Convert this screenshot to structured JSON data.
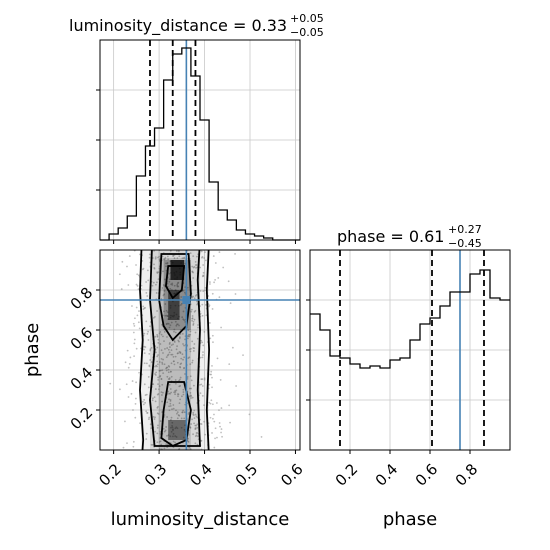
{
  "chart_data": {
    "type": "corner",
    "parameters": [
      "luminosity_distance",
      "phase"
    ],
    "truths": {
      "luminosity_distance": 0.36,
      "phase": 0.75
    },
    "panels": [
      {
        "id": "hist-luminosity_distance",
        "type": "histogram-step",
        "parameter": "luminosity_distance",
        "title": {
          "main": "luminosity_distance = 0.33",
          "sup": "+0.05",
          "sub": "−0.05"
        },
        "xlim": [
          0.17,
          0.61
        ],
        "ylim": [
          0,
          1.0
        ],
        "bin_edges": [
          0.17,
          0.19,
          0.21,
          0.23,
          0.25,
          0.27,
          0.29,
          0.31,
          0.33,
          0.35,
          0.37,
          0.39,
          0.41,
          0.43,
          0.45,
          0.47,
          0.49,
          0.51,
          0.53,
          0.55,
          0.57,
          0.59,
          0.61
        ],
        "values": [
          0.0,
          0.03,
          0.06,
          0.12,
          0.32,
          0.47,
          0.56,
          0.8,
          0.93,
          0.96,
          0.82,
          0.6,
          0.29,
          0.15,
          0.1,
          0.05,
          0.03,
          0.02,
          0.01,
          0.0,
          0.0,
          0.0
        ],
        "quantiles": [
          0.28,
          0.33,
          0.38
        ],
        "truth": 0.36,
        "show_xticklabels": false
      },
      {
        "id": "hist-phase",
        "type": "histogram-step",
        "parameter": "phase",
        "title": {
          "main": "phase = 0.61",
          "sup": "+0.27",
          "sub": "−0.45"
        },
        "xlim": [
          0.0,
          1.0
        ],
        "ylim": [
          0,
          1.0
        ],
        "bin_edges": [
          0.0,
          0.05,
          0.1,
          0.15,
          0.2,
          0.25,
          0.3,
          0.35,
          0.4,
          0.45,
          0.5,
          0.55,
          0.6,
          0.65,
          0.7,
          0.75,
          0.8,
          0.85,
          0.9,
          0.95,
          1.0
        ],
        "values": [
          0.68,
          0.6,
          0.47,
          0.46,
          0.43,
          0.41,
          0.42,
          0.41,
          0.45,
          0.46,
          0.55,
          0.63,
          0.66,
          0.72,
          0.79,
          0.79,
          0.88,
          0.9,
          0.76,
          0.75
        ],
        "quantiles": [
          0.15,
          0.61,
          0.87
        ],
        "truth": 0.75,
        "xticks": [
          0.2,
          0.4,
          0.6,
          0.8
        ],
        "xtick_labels": [
          "0.2",
          "0.4",
          "0.6",
          "0.8"
        ],
        "xlabel": "phase"
      },
      {
        "id": "scatter-phase-vs-luminosity_distance",
        "type": "2d-density",
        "x": "luminosity_distance",
        "y": "phase",
        "xlim": [
          0.17,
          0.61
        ],
        "ylim": [
          0.0,
          1.0
        ],
        "xticks": [
          0.2,
          0.3,
          0.4,
          0.5,
          0.6
        ],
        "xtick_labels": [
          "0.2",
          "0.3",
          "0.4",
          "0.5",
          "0.6"
        ],
        "yticks": [
          0.2,
          0.4,
          0.6,
          0.8
        ],
        "ytick_labels": [
          "0.2",
          "0.4",
          "0.6",
          "0.8"
        ],
        "xlabel": "luminosity_distance",
        "ylabel": "phase",
        "truth": [
          0.36,
          0.75
        ],
        "contour_levels": 4
      }
    ]
  },
  "colors": {
    "truth": "#4682b4",
    "step": "#000000",
    "grid": "#c8c8c8"
  }
}
